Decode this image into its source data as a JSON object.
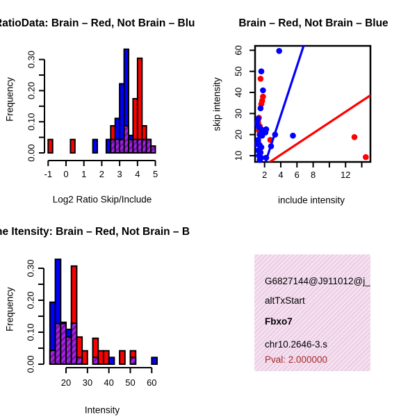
{
  "colors": {
    "red": "#FF0000",
    "blue": "#0000FF",
    "overlap_purple": "#A020F0",
    "overlap_stripe": "#76109E",
    "axis_black": "#000000",
    "pval_red": "#A52A2A",
    "infobox_pink": "#F8DFF2"
  },
  "chart_data": [
    {
      "id": "hist-log2-ratio",
      "type": "bar",
      "title": "RatioData: Brain – Red, Not Brain – Blu",
      "xlabel": "Log2 Ratio Skip/Include",
      "ylabel": "Frequency",
      "xlim": [
        -1.3,
        5.3
      ],
      "ylim": [
        0,
        0.343
      ],
      "bin_width": 0.25,
      "xticks": [
        -1,
        0,
        1,
        2,
        3,
        4,
        5
      ],
      "xtick_labels": [
        "-1",
        "0",
        "1",
        "2",
        "3",
        "4",
        "5"
      ],
      "yticks": [
        0,
        0.05,
        0.1,
        0.15,
        0.2,
        0.25,
        0.3
      ],
      "ytick_labels": [
        "0.00",
        "",
        "0.10",
        "",
        "0.20",
        "",
        "0.30"
      ],
      "series": [
        {
          "name": "brain-red",
          "color": "#FF0000",
          "bars": [
            [
              -1,
              0.043
            ],
            [
              0.25,
              0.043
            ],
            [
              2.5,
              0.087
            ],
            [
              3.75,
              0.174
            ],
            [
              4.0,
              0.304
            ],
            [
              4.25,
              0.087
            ],
            [
              4.5,
              0.043
            ]
          ]
        },
        {
          "name": "not-brain-blue",
          "color": "#0000FF",
          "bars": [
            [
              1.5,
              0.043
            ],
            [
              2.25,
              0.043
            ],
            [
              2.75,
              0.111
            ],
            [
              3.0,
              0.222
            ],
            [
              3.25,
              0.333
            ],
            [
              3.5,
              0.056
            ]
          ]
        },
        {
          "name": "overlap-purple",
          "color": "#A020F0",
          "hatch": true,
          "bars": [
            [
              2.5,
              0.043
            ],
            [
              2.75,
              0.043
            ],
            [
              3.0,
              0.043
            ],
            [
              3.25,
              0.087
            ],
            [
              3.5,
              0.043
            ],
            [
              3.75,
              0.043
            ],
            [
              4.0,
              0.043
            ],
            [
              4.25,
              0.043
            ],
            [
              4.5,
              0.043
            ],
            [
              4.75,
              0.022
            ]
          ]
        }
      ]
    },
    {
      "id": "scatter-intensity",
      "type": "scatter",
      "title": "Brain – Red, Not Brain – Blue",
      "xlabel": "include intensity",
      "ylabel": "skip intensity",
      "xlim": [
        0.85,
        15.1
      ],
      "ylim": [
        6.2,
        62.7
      ],
      "xticks": [
        2,
        4,
        6,
        8,
        10,
        12,
        14
      ],
      "xtick_labels": [
        "2",
        "4",
        "6",
        "8",
        "",
        "12",
        ""
      ],
      "yticks": [
        10,
        20,
        30,
        40,
        50,
        60
      ],
      "ytick_labels": [
        "10",
        "20",
        "30",
        "40",
        "50",
        "60"
      ],
      "series": [
        {
          "name": "brain-red",
          "color": "#FF0000",
          "points": [
            [
              1.5,
              46.5
            ],
            [
              1.8,
              38
            ],
            [
              1.7,
              36
            ],
            [
              1.6,
              34.5
            ],
            [
              1.3,
              28
            ],
            [
              1.2,
              26
            ],
            [
              1.4,
              24
            ],
            [
              1.3,
              22
            ],
            [
              2.7,
              17.5
            ],
            [
              1.2,
              16.5
            ],
            [
              13.1,
              18.8
            ],
            [
              14.5,
              9.3
            ]
          ],
          "line": [
            [
              2.33,
              6.2
            ],
            [
              15.1,
              38.7
            ]
          ]
        },
        {
          "name": "not-brain-blue",
          "color": "#0000FF",
          "points": [
            [
              3.8,
              59.7
            ],
            [
              1.6,
              50
            ],
            [
              1.8,
              41
            ],
            [
              1.5,
              32.5
            ],
            [
              1.2,
              27.5
            ],
            [
              1.1,
              25
            ],
            [
              1.3,
              23.5
            ],
            [
              1.6,
              22.5
            ],
            [
              1.9,
              21.5
            ],
            [
              2.1,
              21
            ],
            [
              2.2,
              22.5
            ],
            [
              1.4,
              20
            ],
            [
              1.7,
              19.5
            ],
            [
              3.3,
              20
            ],
            [
              5.5,
              19.5
            ],
            [
              1.2,
              17.5
            ],
            [
              1.1,
              15.5
            ],
            [
              1.4,
              15
            ],
            [
              1.6,
              14
            ],
            [
              2.8,
              14.5
            ],
            [
              1.2,
              12.5
            ],
            [
              1.5,
              11.5
            ],
            [
              1.3,
              10
            ],
            [
              1.6,
              9
            ],
            [
              2.2,
              9
            ],
            [
              1.4,
              8
            ]
          ],
          "line": [
            [
              2.05,
              6.2
            ],
            [
              6.87,
              62.7
            ]
          ]
        }
      ]
    },
    {
      "id": "hist-gene-intensity",
      "type": "bar",
      "title": "ne Itensity: Brain – Red, Not Brain – B",
      "xlabel": "Intensity",
      "ylabel": "Frequency",
      "xlim": [
        11,
        64
      ],
      "ylim": [
        0,
        0.343
      ],
      "bin_width": 2.5,
      "xticks": [
        20,
        30,
        40,
        50,
        60
      ],
      "xtick_labels": [
        "20",
        "30",
        "40",
        "50",
        "60"
      ],
      "yticks": [
        0,
        0.05,
        0.1,
        0.15,
        0.2,
        0.25,
        0.3
      ],
      "ytick_labels": [
        "0.00",
        "",
        "0.10",
        "",
        "0.20",
        "",
        "0.30"
      ],
      "series": [
        {
          "name": "not-brain-blue",
          "color": "#0000FF",
          "bars": [
            [
              12.5,
              0.194
            ],
            [
              15,
              0.328
            ],
            [
              17.5,
              0.131
            ],
            [
              20,
              0.109
            ],
            [
              22.5,
              0.128
            ],
            [
              40,
              0.021
            ],
            [
              60,
              0.021
            ]
          ]
        },
        {
          "name": "brain-red",
          "color": "#FF0000",
          "bars": [
            [
              12.5,
              0.043
            ],
            [
              15,
              0.127
            ],
            [
              17.5,
              0.127
            ],
            [
              20,
              0.085
            ],
            [
              22.5,
              0.307
            ],
            [
              25,
              0.085
            ],
            [
              27.5,
              0.042
            ],
            [
              32.5,
              0.081
            ],
            [
              35,
              0.042
            ],
            [
              37.5,
              0.042
            ],
            [
              45,
              0.042
            ],
            [
              50,
              0.042
            ]
          ]
        },
        {
          "name": "overlap-purple",
          "color": "#A020F0",
          "hatch": true,
          "bars": [
            [
              12.5,
              0.043
            ],
            [
              15,
              0.127
            ],
            [
              17.5,
              0.127
            ],
            [
              20,
              0.085
            ],
            [
              22.5,
              0.128
            ],
            [
              25,
              0.021
            ],
            [
              32.5,
              0.021
            ],
            [
              50,
              0.021
            ]
          ]
        }
      ]
    }
  ],
  "infobox": {
    "lines": [
      {
        "text": "G6827144@J911012@j_"
      },
      {
        "text": "altTxStart"
      },
      {
        "text": "Fbxo7"
      },
      {
        "text": "chr10.2646-3.s"
      },
      {
        "text": "Pval: 2.000000"
      }
    ]
  }
}
